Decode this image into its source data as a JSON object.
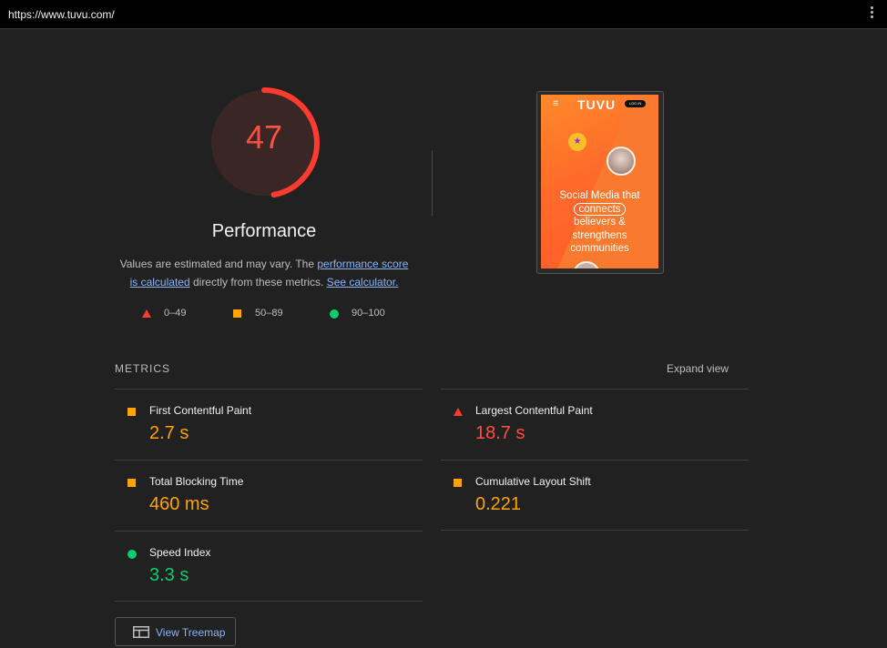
{
  "browser": {
    "url": "https://www.tuvu.com/"
  },
  "score": {
    "value": 47,
    "fraction": 0.47,
    "title": "Performance",
    "color": "#ff4e42"
  },
  "description": {
    "text_1": "Values are estimated and may vary. The ",
    "link_1": "performance score is calculated",
    "text_2": " directly from these metrics. ",
    "link_2": "See calculator."
  },
  "legend": [
    {
      "icon": "red-triangle-icon",
      "label": "0–49"
    },
    {
      "icon": "orange-square-icon",
      "label": "50–89"
    },
    {
      "icon": "green-circle-icon",
      "label": "90–100"
    }
  ],
  "screenshot": {
    "logo": "TUVU",
    "login": "LOG IN",
    "tagline_1": "Social Media that",
    "tagline_pill": "connects",
    "tagline_2": "believers &",
    "tagline_3": "strengthens",
    "tagline_4": "communities"
  },
  "metrics": {
    "header": "METRICS",
    "expand": "Expand view",
    "items": [
      {
        "title": "First Contentful Paint",
        "value": "2.7 s",
        "status": "orange"
      },
      {
        "title": "Largest Contentful Paint",
        "value": "18.7 s",
        "status": "red"
      },
      {
        "title": "Total Blocking Time",
        "value": "460 ms",
        "status": "orange"
      },
      {
        "title": "Cumulative Layout Shift",
        "value": "0.221",
        "status": "orange"
      },
      {
        "title": "Speed Index",
        "value": "3.3 s",
        "status": "green"
      }
    ]
  },
  "treemap": {
    "label": "View Treemap"
  },
  "colors": {
    "red": "#ff4e42",
    "orange": "#ffa400",
    "green": "#0cce6b",
    "link": "#8ab4f8",
    "background": "#212121"
  }
}
